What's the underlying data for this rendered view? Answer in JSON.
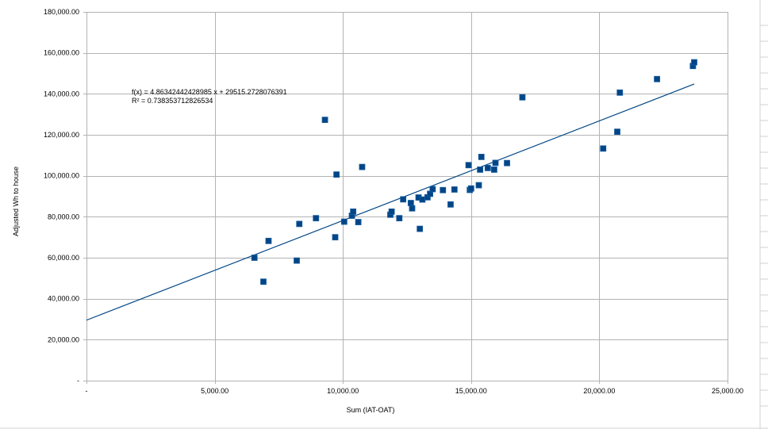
{
  "colors": {
    "grid": "#b3b3b3",
    "marker": "#004586",
    "marker_edge": "#1a5fa0",
    "trendline": "#004586",
    "sheet_grid": "#d0d0d0"
  },
  "chart_data": {
    "type": "scatter",
    "xlabel": "Sum (IAT-OAT)",
    "ylabel": "Adjusted Wh to house",
    "xlim": [
      0,
      25000
    ],
    "ylim": [
      0,
      180000
    ],
    "x_ticks": [
      0,
      5000,
      10000,
      15000,
      20000,
      25000
    ],
    "y_ticks": [
      0,
      20000,
      40000,
      60000,
      80000,
      100000,
      120000,
      140000,
      160000,
      180000
    ],
    "x_tick_labels": [
      "-",
      "5,000.00",
      "10,000.00",
      "15,000.00",
      "20,000.00",
      "25,000.00"
    ],
    "y_tick_labels": [
      "-",
      "20,000.00",
      "40,000.00",
      "60,000.00",
      "80,000.00",
      "100,000.00",
      "120,000.00",
      "140,000.00",
      "160,000.00",
      "180,000.00"
    ],
    "grid": true,
    "legend": "none",
    "trendline": {
      "slope": 4.86342442428985,
      "intercept": 29515.2728076391,
      "x_start": 0,
      "x_end": 23700,
      "equation_label": "f(x) = 4.86342442428985 x + 29515.2728076391",
      "r2_label": "R² = 0.738353712826534"
    },
    "series": [
      {
        "points": [
          [
            6550,
            60000
          ],
          [
            6900,
            48300
          ],
          [
            7100,
            68200
          ],
          [
            8200,
            58600
          ],
          [
            8300,
            76500
          ],
          [
            8950,
            79300
          ],
          [
            9300,
            127300
          ],
          [
            9700,
            70000
          ],
          [
            9750,
            100600
          ],
          [
            10050,
            77600
          ],
          [
            10350,
            80500
          ],
          [
            10400,
            82500
          ],
          [
            10600,
            77400
          ],
          [
            10750,
            104300
          ],
          [
            11850,
            81000
          ],
          [
            11900,
            82500
          ],
          [
            12200,
            79300
          ],
          [
            12350,
            88500
          ],
          [
            12650,
            86700
          ],
          [
            12700,
            84100
          ],
          [
            12950,
            89400
          ],
          [
            13000,
            74100
          ],
          [
            13100,
            88400
          ],
          [
            13300,
            89500
          ],
          [
            13400,
            91200
          ],
          [
            13500,
            93500
          ],
          [
            13900,
            93000
          ],
          [
            14200,
            86000
          ],
          [
            14350,
            93300
          ],
          [
            14900,
            105200
          ],
          [
            14950,
            93100
          ],
          [
            15000,
            93800
          ],
          [
            15300,
            95400
          ],
          [
            15350,
            103000
          ],
          [
            15400,
            109200
          ],
          [
            15650,
            103800
          ],
          [
            15900,
            103000
          ],
          [
            15950,
            106300
          ],
          [
            16400,
            106200
          ],
          [
            17000,
            138300
          ],
          [
            20150,
            113300
          ],
          [
            20700,
            121500
          ],
          [
            20800,
            140600
          ],
          [
            22250,
            147200
          ],
          [
            23650,
            153600
          ],
          [
            23700,
            155400
          ]
        ]
      }
    ]
  }
}
